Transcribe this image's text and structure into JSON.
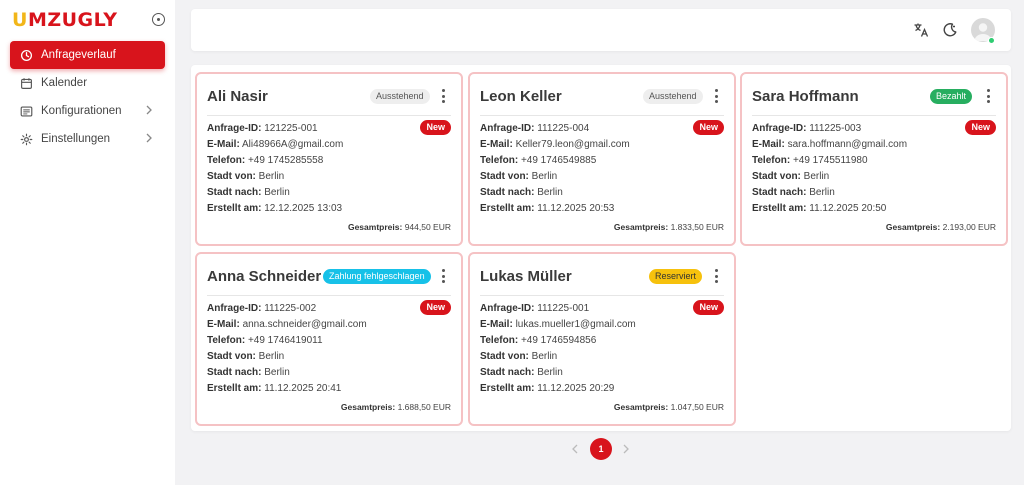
{
  "brand": {
    "logo_text": "UMZUGLY",
    "logo_u": "U",
    "logo_rest": "MZUGLY",
    "primary_color": "#d8141c",
    "accent_color": "#f2b619"
  },
  "sidebar": {
    "items": [
      {
        "label": "Anfrageverlauf",
        "icon": "history-icon",
        "active": true
      },
      {
        "label": "Kalender",
        "icon": "calendar-icon"
      },
      {
        "label": "Konfigurationen",
        "icon": "list-icon",
        "has_submenu": true
      },
      {
        "label": "Einstellungen",
        "icon": "gear-icon",
        "has_submenu": true
      }
    ]
  },
  "topbar": {
    "icons": [
      "translate-icon",
      "dark-mode-icon",
      "avatar"
    ],
    "online_color": "#2ecc71"
  },
  "labels": {
    "request_id": "Anfrage-ID:",
    "email": "E-Mail:",
    "phone": "Telefon:",
    "city_from": "Stadt von:",
    "city_to": "Stadt nach:",
    "created": "Erstellt am:",
    "total": "Gesamtpreis:",
    "new": "New"
  },
  "cards": [
    {
      "name": "Ali Nasir",
      "status": "Ausstehend",
      "id": "121225-001",
      "email": "Ali48966A@gmail.com",
      "phone": "+49 1745285558",
      "from": "Berlin",
      "to": "Berlin",
      "created": "12.12.2025 13:03",
      "total": "944,50 EUR"
    },
    {
      "name": "Leon Keller",
      "status": "Ausstehend",
      "id": "111225-004",
      "email": "Keller79.leon@gmail.com",
      "phone": "+49 1746549885",
      "from": "Berlin",
      "to": "Berlin",
      "created": "11.12.2025 20:53",
      "total": "1.833,50 EUR"
    },
    {
      "name": "Sara Hoffmann",
      "status": "Bezahlt",
      "id": "111225-003",
      "email": "sara.hoffmann@gmail.com",
      "phone": "+49 1745511980",
      "from": "Berlin",
      "to": "Berlin",
      "created": "11.12.2025 20:50",
      "total": "2.193,00 EUR"
    },
    {
      "name": "Anna Schneider",
      "status": "Zahlung fehlgeschlagen",
      "id": "111225-002",
      "email": "anna.schneider@gmail.com",
      "phone": "+49 1746419011",
      "from": "Berlin",
      "to": "Berlin",
      "created": "11.12.2025 20:41",
      "total": "1.688,50 EUR"
    },
    {
      "name": "Lukas Müller",
      "status": "Reserviert",
      "id": "111225-001",
      "email": "lukas.mueller1@gmail.com",
      "phone": "+49 1746594856",
      "from": "Berlin",
      "to": "Berlin",
      "created": "11.12.2025 20:29",
      "total": "1.047,50 EUR"
    }
  ],
  "pagination": {
    "current_page": "1"
  }
}
